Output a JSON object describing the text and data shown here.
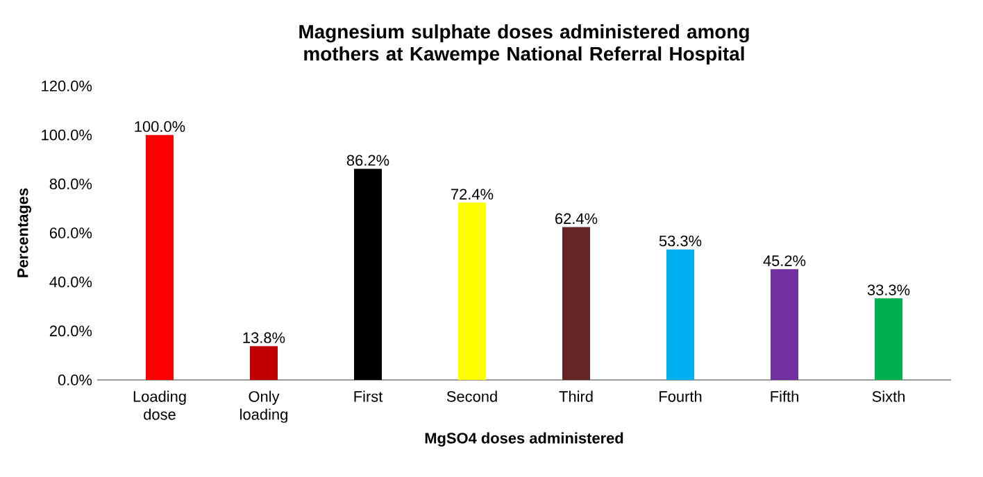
{
  "chart_data": {
    "type": "bar",
    "title": "Magnesium sulphate doses administered among mothers at Kawempe National Referral Hospital",
    "xlabel": "MgSO4 doses administered",
    "ylabel": "Percentages",
    "categories": [
      "Loading dose",
      "Only loading",
      "First",
      "Second",
      "Third",
      "Fourth",
      "Fifth",
      "Sixth"
    ],
    "values": [
      100.0,
      13.8,
      86.2,
      72.4,
      62.4,
      53.3,
      45.2,
      33.3
    ],
    "value_labels": [
      "100.0%",
      "13.8%",
      "86.2%",
      "72.4%",
      "62.4%",
      "53.3%",
      "45.2%",
      "33.3%"
    ],
    "colors": [
      "#ff0000",
      "#c00000",
      "#000000",
      "#ffff00",
      "#632523",
      "#00b0f0",
      "#7030a0",
      "#00b050"
    ],
    "ylim": [
      0,
      120
    ],
    "yticks": [
      {
        "value": 0,
        "label": "0.0%"
      },
      {
        "value": 20,
        "label": "20.0%"
      },
      {
        "value": 40,
        "label": "40.0%"
      },
      {
        "value": 60,
        "label": "60.0%"
      },
      {
        "value": 80,
        "label": "80.0%"
      },
      {
        "value": 100,
        "label": "100.0%"
      },
      {
        "value": 120,
        "label": "120.0%"
      }
    ],
    "grid": false
  }
}
